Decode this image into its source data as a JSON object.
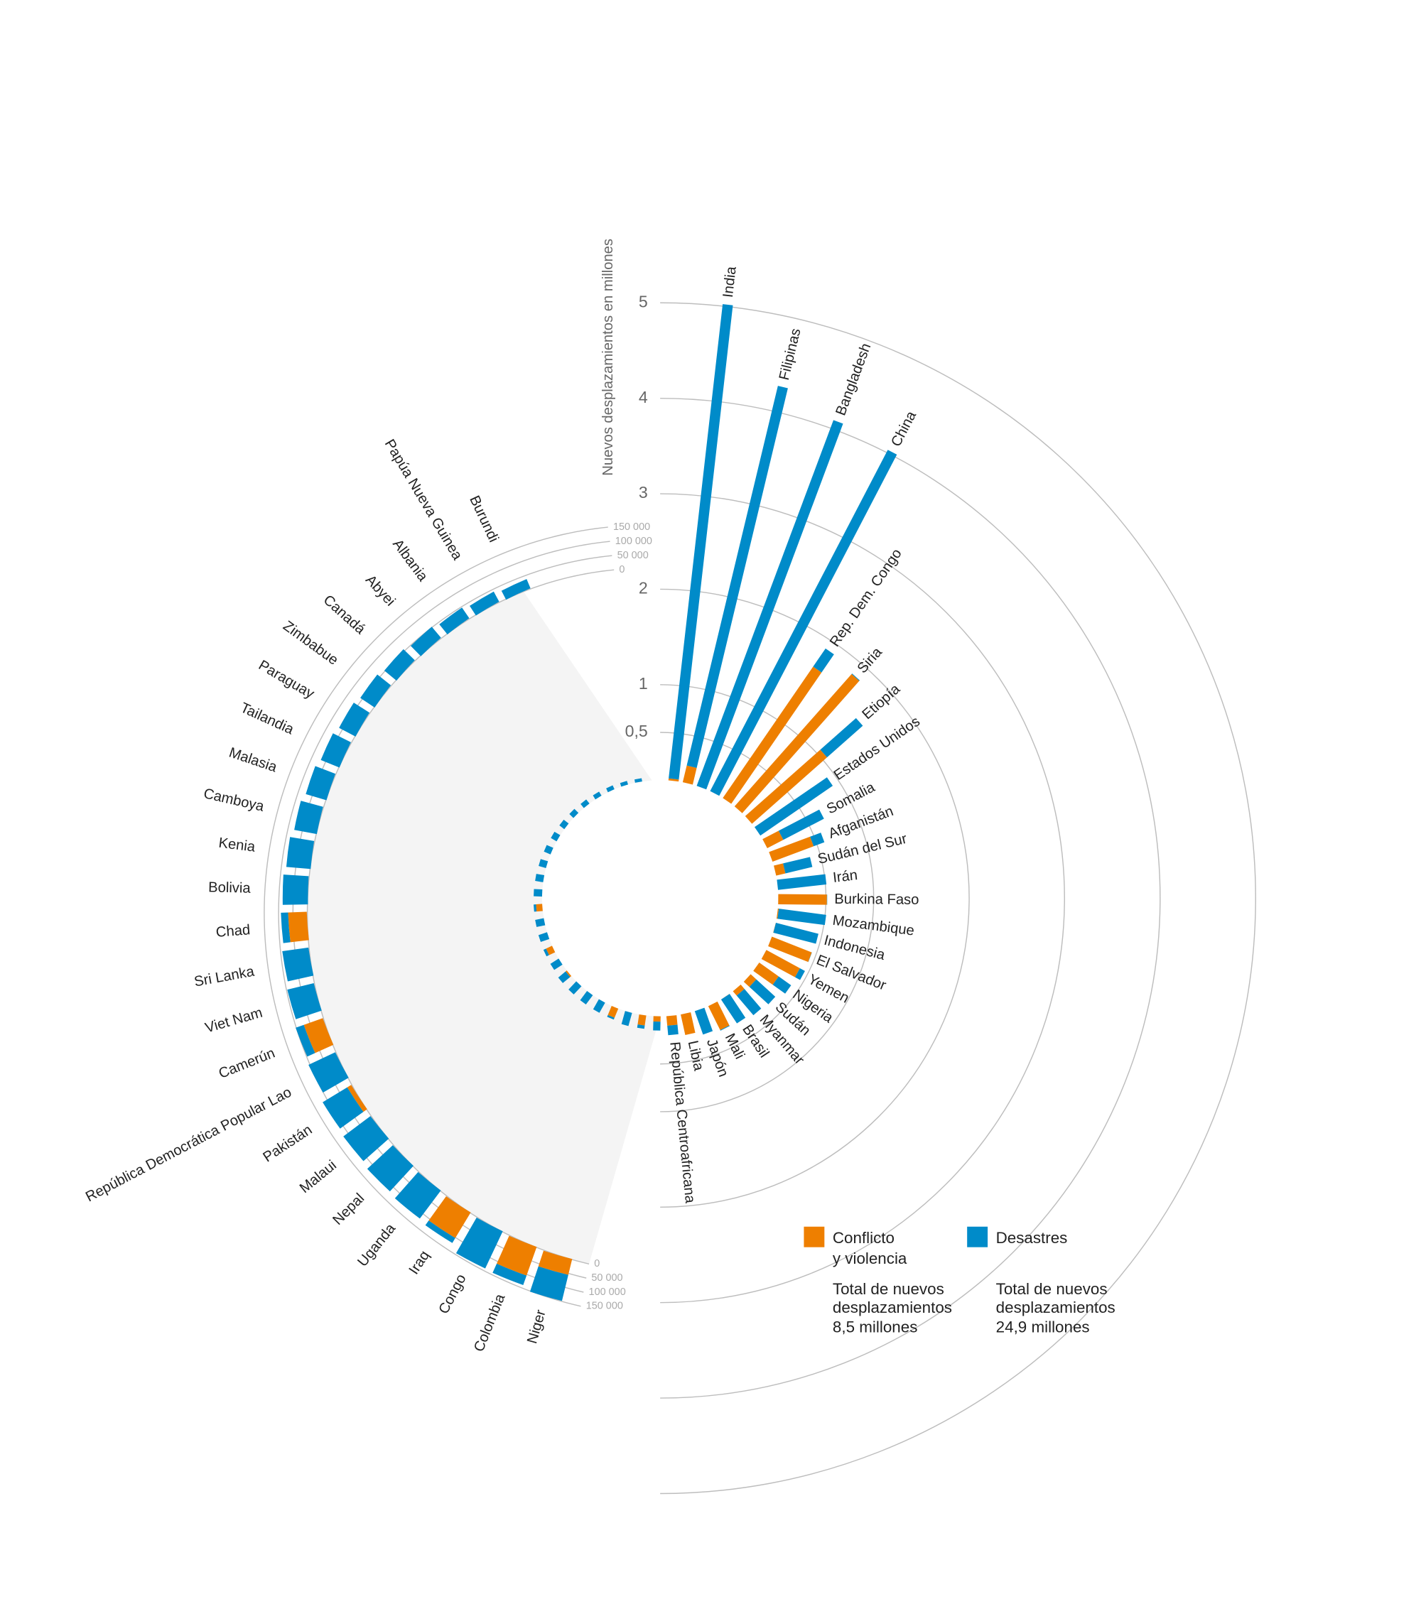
{
  "chart_data": [
    {
      "type": "radial-bar",
      "y_label": "Nuevos desplazamientos en millones",
      "categories": [
        "India",
        "Filipinas",
        "Bangladesh",
        "China",
        "Rep. Dem. Congo",
        "Siria",
        "Etiopía",
        "Estados Unidos",
        "Somalia",
        "Afganistán",
        "Sudán del Sur",
        "Irán",
        "Burkina Faso",
        "Mozambique",
        "Indonesia",
        "El Salvador",
        "Yemen",
        "Nigeria",
        "Sudán",
        "Myanmar",
        "Brasil",
        "Mali",
        "Japón",
        "Libia",
        "República Centroafricana"
      ],
      "series": [
        {
          "name": "Conflicto y violencia",
          "color": "#ee7f00",
          "values": [
            0.02,
            0.18,
            0,
            0,
            1.67,
            1.85,
            1.05,
            0,
            0.19,
            0.46,
            0.1,
            0,
            0.51,
            0.01,
            0.002,
            0.45,
            0.4,
            0.25,
            0.08,
            0.06,
            0.001,
            0.28,
            0,
            0.22,
            0.1
          ]
        },
        {
          "name": "Desastres",
          "color": "#008bc9",
          "values": [
            5.0,
            4.09,
            4.09,
            4.03,
            0.23,
            0.008,
            0.5,
            0.92,
            0.48,
            0.12,
            0.29,
            0.51,
            0.003,
            0.5,
            0.46,
            0.002,
            0.06,
            0.16,
            0.27,
            0.27,
            0.3,
            0.007,
            0.26,
            0,
            0.1
          ]
        }
      ],
      "ylim": [
        0,
        5
      ],
      "yticks": [
        {
          "value": 0.5,
          "label": "0,5"
        },
        1,
        2,
        3,
        4,
        5
      ],
      "annotations": [
        "Total de nuevos desplazamientos 8,5 millones",
        "Total de nuevos desplazamientos 24,9 millones"
      ]
    },
    {
      "type": "radial-bar",
      "categories": [
        "Niger",
        "Colombia",
        "Congo",
        "Iraq",
        "Uganda",
        "Nepal",
        "Malaui",
        "Pakistán",
        "República Democrática Popular Lao",
        "Camerún",
        "Viet Nam",
        "Sri Lanka",
        "Chad",
        "Bolivia",
        "Kenia",
        "Camboya",
        "Malasia",
        "Tailandia",
        "Paraguay",
        "Zimbabue",
        "Canadá",
        "Abyei",
        "Albania",
        "Papúa Nueva Guinea",
        "Burundi"
      ],
      "series": [
        {
          "color": "#ee7f00",
          "values": [
            57000,
            106000,
            0,
            104000,
            0,
            0,
            0,
            16000,
            0,
            70000,
            0,
            0,
            65000,
            0,
            0,
            0,
            0,
            0,
            0,
            0,
            0,
            0,
            0,
            0,
            0
          ]
        },
        {
          "color": "#008bc9",
          "values": [
            93000,
            35000,
            143000,
            20000,
            122000,
            121000,
            118000,
            100000,
            103000,
            30000,
            95000,
            92000,
            25000,
            88000,
            85000,
            80000,
            75000,
            70000,
            65000,
            60000,
            55000,
            50000,
            45000,
            40000,
            35000
          ]
        }
      ],
      "ylim": [
        0,
        150000
      ],
      "yticks": [
        0,
        {
          "value": 50000,
          "label": "50 000"
        },
        {
          "value": 100000,
          "label": "100 000"
        },
        {
          "value": 150000,
          "label": "150 000"
        }
      ]
    }
  ]
}
